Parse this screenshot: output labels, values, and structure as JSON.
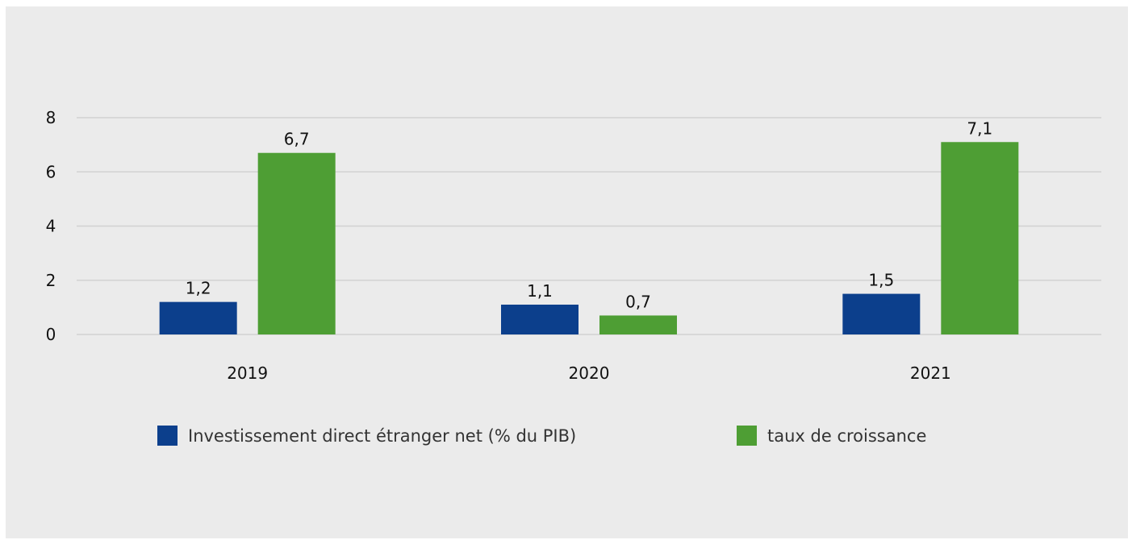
{
  "chart_data": {
    "type": "bar",
    "title": "",
    "xlabel": "",
    "ylabel": "",
    "categories": [
      "2019",
      "2020",
      "2021"
    ],
    "series": [
      {
        "name": "Investissement direct étranger net (% du PIB)",
        "values": [
          1.2,
          1.1,
          1.5
        ],
        "labels": [
          "1,2",
          "1,1",
          "1,5"
        ],
        "color": "#0c3f8c"
      },
      {
        "name": "taux de croissance",
        "values": [
          6.7,
          0.7,
          7.1
        ],
        "labels": [
          "6,7",
          "0,7",
          "7,1"
        ],
        "color": "#4e9e34"
      }
    ],
    "ylim": [
      0,
      8
    ],
    "yticks": [
      0,
      2,
      4,
      6,
      8
    ],
    "ytick_labels": [
      "0",
      "2",
      "4",
      "6",
      "8"
    ],
    "grid": true,
    "legend_position": "bottom",
    "background": "#ebebeb"
  }
}
